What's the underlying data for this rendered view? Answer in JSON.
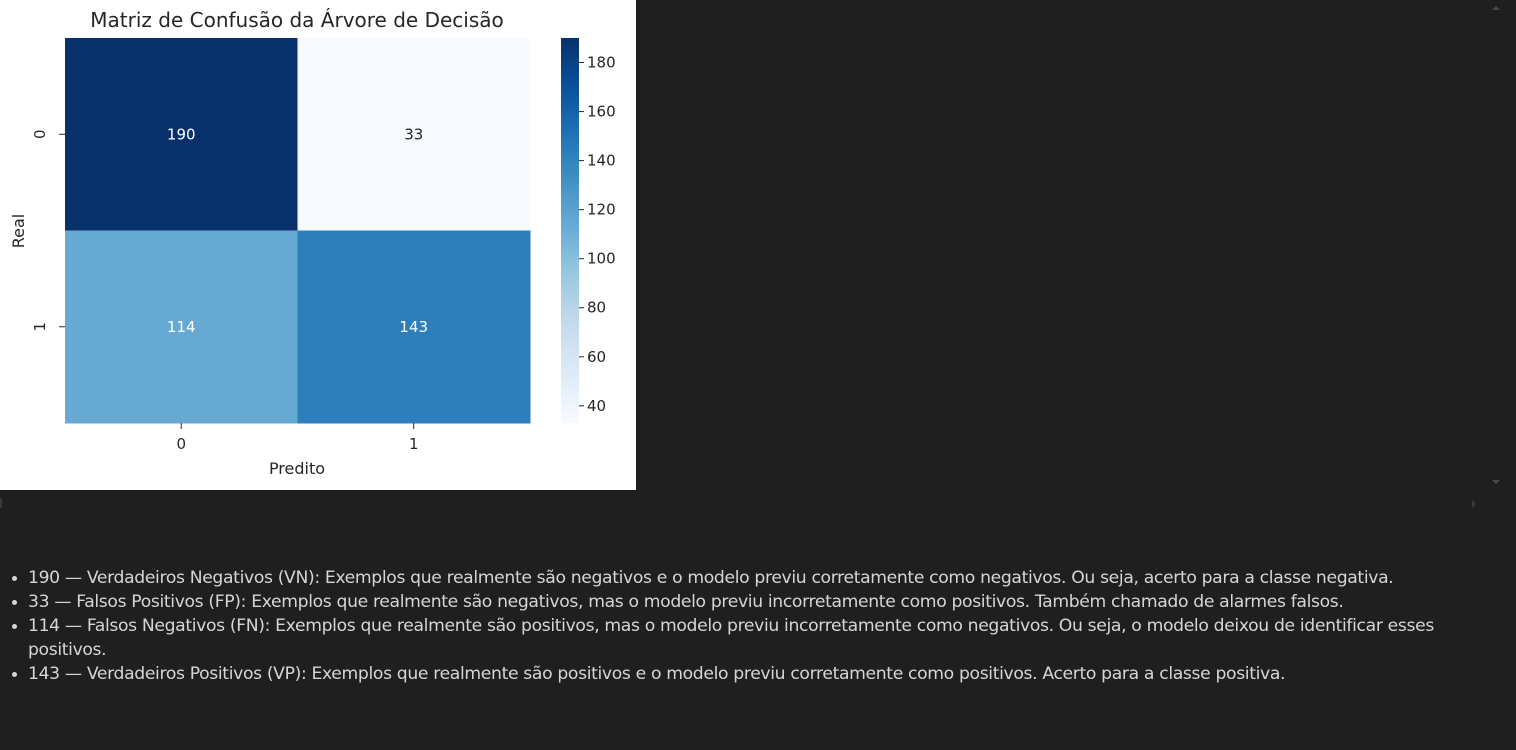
{
  "chart_data": {
    "type": "heatmap",
    "title": "Matriz de Confusão da Árvore de Decisão",
    "xlabel": "Predito",
    "ylabel": "Real",
    "x_categories": [
      "0",
      "1"
    ],
    "y_categories": [
      "0",
      "1"
    ],
    "values": [
      [
        190,
        33
      ],
      [
        114,
        143
      ]
    ],
    "colormap": "Blues",
    "colorbar": {
      "min": 33,
      "max": 190,
      "ticks": [
        40,
        60,
        80,
        100,
        120,
        140,
        160,
        180
      ]
    },
    "annotations": true
  },
  "notes": {
    "items": [
      "190 — Verdadeiros Negativos (VN): Exemplos que realmente são negativos e o modelo previu corretamente como negativos. Ou seja, acerto para a classe negativa.",
      "33 — Falsos Positivos (FP): Exemplos que realmente são negativos, mas o modelo previu incorretamente como positivos. Também chamado de alarmes falsos.",
      "114 — Falsos Negativos (FN): Exemplos que realmente são positivos, mas o modelo previu incorretamente como negativos. Ou seja, o modelo deixou de identificar esses positivos.",
      "143 — Verdadeiros Positivos (VP): Exemplos que realmente são positivos e o modelo previu corretamente como positivos. Acerto para a classe positiva."
    ]
  }
}
